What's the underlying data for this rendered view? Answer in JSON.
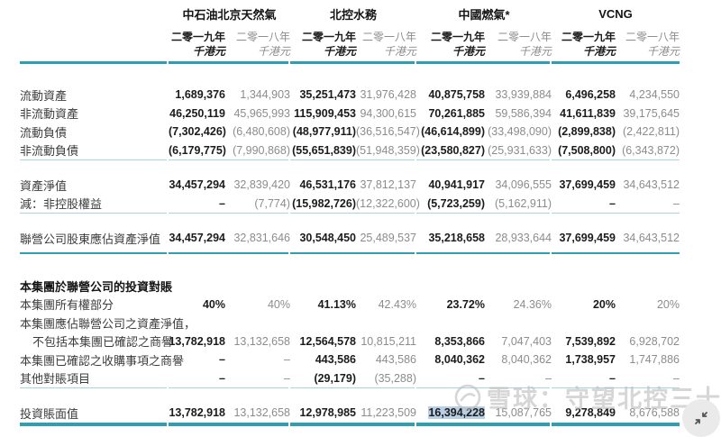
{
  "table": {
    "header": {
      "groups": [
        "中石油北京天然氣",
        "北控水務",
        "中國燃氣*",
        "VCNG"
      ],
      "year_current": "二零一九年",
      "year_prior": "二零一八年",
      "unit": "千港元"
    },
    "rows": [
      {
        "type": "spacer",
        "h": 24
      },
      {
        "type": "data",
        "label": "流動資產",
        "values": [
          "1,689,376",
          "1,344,903",
          "35,251,473",
          "31,976,428",
          "40,875,758",
          "33,939,884",
          "6,496,258",
          "4,234,550"
        ]
      },
      {
        "type": "data",
        "label": "非流動資產",
        "values": [
          "46,250,119",
          "45,965,993",
          "115,909,453",
          "94,300,615",
          "70,261,885",
          "59,586,394",
          "41,611,839",
          "39,175,645"
        ]
      },
      {
        "type": "data",
        "label": "流動負債",
        "values": [
          "(7,302,426)",
          "(6,480,608)",
          "(48,977,911)",
          "(36,516,547)",
          "(46,614,899)",
          "(33,498,090)",
          "(2,899,838)",
          "(2,422,811)"
        ]
      },
      {
        "type": "data",
        "label": "非流動負債",
        "values": [
          "(6,179,775)",
          "(7,990,868)",
          "(55,651,839)",
          "(51,948,359)",
          "(23,580,827)",
          "(25,931,633)",
          "(7,508,800)",
          "(6,343,872)"
        ]
      },
      {
        "type": "rule",
        "style": "thin"
      },
      {
        "type": "spacer",
        "h": 17
      },
      {
        "type": "data",
        "label": "資產淨值",
        "values": [
          "34,457,294",
          "32,839,420",
          "46,531,176",
          "37,812,137",
          "40,941,917",
          "34,096,555",
          "37,699,459",
          "34,643,512"
        ]
      },
      {
        "type": "data",
        "label": "減：非控股權益",
        "values": [
          "–",
          "(7,774)",
          "(15,982,726)",
          "(12,322,600)",
          "(5,723,259)",
          "(5,162,911)",
          "–",
          "–"
        ]
      },
      {
        "type": "rule",
        "style": "thin"
      },
      {
        "type": "spacer",
        "h": 17
      },
      {
        "type": "data",
        "label": "聯營公司股東應佔資產淨值",
        "values": [
          "34,457,294",
          "32,831,646",
          "30,548,450",
          "25,489,537",
          "35,218,658",
          "28,933,644",
          "37,699,459",
          "34,643,512"
        ]
      },
      {
        "type": "spacer",
        "h": 5
      },
      {
        "type": "rule",
        "style": "teal-mid"
      },
      {
        "type": "spacer",
        "h": 25
      },
      {
        "type": "section",
        "label": "本集團於聯營公司的投資對賬"
      },
      {
        "type": "data",
        "label": "本集團所有權部分",
        "values": [
          "40%",
          "40%",
          "41.13%",
          "42.43%",
          "23.72%",
          "24.36%",
          "20%",
          "20%"
        ]
      },
      {
        "type": "data",
        "label": "本集團應佔聯營公司之資產淨值，",
        "values": [
          "",
          "",
          "",
          "",
          "",
          "",
          "",
          ""
        ]
      },
      {
        "type": "data",
        "label": "不包括本集團已確認之商譽",
        "indent": true,
        "values": [
          "13,782,918",
          "13,132,658",
          "12,564,578",
          "10,815,211",
          "8,353,866",
          "7,047,403",
          "7,539,892",
          "6,928,702"
        ]
      },
      {
        "type": "data",
        "label": "本集團已確認之收購事項之商譽",
        "values": [
          "–",
          "–",
          "443,586",
          "443,586",
          "8,040,362",
          "8,040,362",
          "1,738,957",
          "1,747,886"
        ]
      },
      {
        "type": "data",
        "label": "其他對賬項目",
        "values": [
          "–",
          "–",
          "(29,179)",
          "(35,288)",
          "–",
          "–",
          "–",
          "–"
        ]
      },
      {
        "type": "rule",
        "style": "thin"
      },
      {
        "type": "spacer",
        "h": 17
      },
      {
        "type": "data",
        "label": "投資賬面值",
        "highlight_index": 4,
        "values": [
          "13,782,918",
          "13,132,658",
          "12,978,985",
          "11,223,509",
          "16,394,228",
          "15,087,765",
          "9,278,849",
          "8,676,588"
        ]
      },
      {
        "type": "rule",
        "style": "teal-thick"
      }
    ]
  },
  "watermark": {
    "text": "雪球：守望北控三十年",
    "logo": "xueqiu-snowball-icon"
  },
  "corner_button": {
    "icon": "collapse-arrows-icon"
  },
  "colors": {
    "teal": "#2d9fae",
    "rule_light": "#abd3da",
    "gray_text": "#8c8c8c",
    "dark_text": "#1b1b1b",
    "highlight": "#b9cfe3",
    "watermark": "#bdbdbd"
  }
}
